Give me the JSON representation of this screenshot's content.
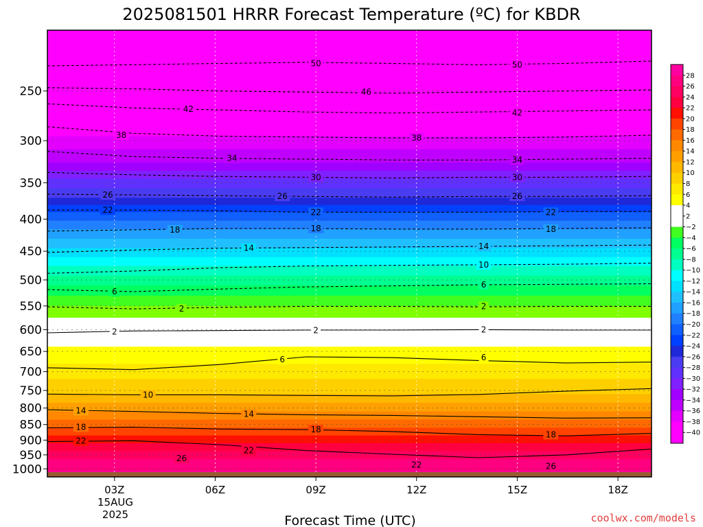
{
  "chart_data": {
    "type": "heatmap",
    "title": "2025081501 HRRR Forecast Temperature (ºC) for KBDR",
    "xlabel": "Forecast Time (UTC)",
    "ylabel": "",
    "x_ticks": [
      "03Z",
      "06Z",
      "09Z",
      "12Z",
      "15Z",
      "18Z"
    ],
    "x_date_lines": [
      "15AUG",
      "2025"
    ],
    "x_range_hours": [
      0,
      18
    ],
    "x_tick_hours": [
      2,
      5,
      8,
      11,
      14,
      17
    ],
    "y_scale": "log",
    "y_ticks": [
      250,
      300,
      350,
      400,
      450,
      500,
      550,
      600,
      650,
      700,
      750,
      800,
      850,
      900,
      950,
      1000
    ],
    "y_range_hpa": [
      200,
      1030
    ],
    "ground_level_hpa": 1012,
    "grid": true,
    "colorbar": {
      "placement": "right",
      "labels": [
        28,
        26,
        24,
        22,
        20,
        18,
        16,
        14,
        12,
        10,
        8,
        6,
        4,
        2,
        -2,
        -4,
        -6,
        -8,
        -10,
        -12,
        -14,
        -16,
        -18,
        -20,
        -22,
        -24,
        -26,
        -28,
        -30,
        -32,
        -34,
        -36,
        -38,
        -40
      ]
    },
    "profile": [
      {
        "p": 200,
        "t": -56
      },
      {
        "p": 230,
        "t": -50
      },
      {
        "p": 250,
        "t": -46
      },
      {
        "p": 270,
        "t": -42
      },
      {
        "p": 295,
        "t": -38
      },
      {
        "p": 325,
        "t": -34
      },
      {
        "p": 345,
        "t": -30
      },
      {
        "p": 370,
        "t": -26
      },
      {
        "p": 390,
        "t": -22
      },
      {
        "p": 415,
        "t": -18
      },
      {
        "p": 445,
        "t": -14
      },
      {
        "p": 475,
        "t": -10
      },
      {
        "p": 510,
        "t": -6
      },
      {
        "p": 550,
        "t": -2
      },
      {
        "p": 600,
        "t": 2
      },
      {
        "p": 680,
        "t": 6
      },
      {
        "p": 760,
        "t": 10
      },
      {
        "p": 810,
        "t": 14
      },
      {
        "p": 860,
        "t": 18
      },
      {
        "p": 910,
        "t": 22
      },
      {
        "p": 965,
        "t": 26
      },
      {
        "p": 1030,
        "t": 29
      }
    ],
    "contours": [
      {
        "value": -50,
        "p": [
          228,
          227,
          226,
          225,
          226,
          227,
          226,
          224
        ]
      },
      {
        "value": -46,
        "p": [
          247,
          248,
          250,
          251,
          252,
          251,
          250,
          249
        ]
      },
      {
        "value": -42,
        "p": [
          262,
          266,
          268,
          270,
          271,
          270,
          269,
          268
        ]
      },
      {
        "value": -38,
        "p": [
          285,
          292,
          295,
          296,
          297,
          297,
          296,
          294
        ]
      },
      {
        "value": -34,
        "p": [
          312,
          318,
          320,
          321,
          322,
          322,
          321,
          320
        ]
      },
      {
        "value": -30,
        "p": [
          337,
          340,
          342,
          343,
          344,
          343,
          343,
          342
        ]
      },
      {
        "value": -26,
        "p": [
          365,
          366,
          367,
          368,
          369,
          368,
          368,
          367
        ]
      },
      {
        "value": -22,
        "p": [
          387,
          387,
          388,
          390,
          390,
          390,
          389,
          389
        ]
      },
      {
        "value": -18,
        "p": [
          418,
          416,
          414,
          414,
          415,
          415,
          414,
          413
        ]
      },
      {
        "value": -14,
        "p": [
          452,
          448,
          445,
          444,
          443,
          442,
          441,
          440
        ]
      },
      {
        "value": -10,
        "p": [
          488,
          484,
          478,
          475,
          474,
          473,
          472,
          470
        ]
      },
      {
        "value": -6,
        "p": [
          518,
          522,
          517,
          513,
          511,
          509,
          508,
          507
        ]
      },
      {
        "value": -2,
        "p": [
          552,
          556,
          553,
          551,
          551,
          552,
          551,
          551
        ]
      },
      {
        "value": 2,
        "p": [
          607,
          603,
          602,
          601,
          601,
          600,
          601,
          601
        ]
      },
      {
        "value": 6,
        "p": [
          690,
          695,
          682,
          663,
          665,
          672,
          678,
          676
        ]
      },
      {
        "value": 10,
        "p": [
          760,
          762,
          762,
          764,
          765,
          761,
          752,
          745
        ]
      },
      {
        "value": 14,
        "p": [
          805,
          810,
          816,
          820,
          822,
          826,
          830,
          829
        ]
      },
      {
        "value": 18,
        "p": [
          860,
          858,
          864,
          866,
          872,
          882,
          886,
          878
        ]
      },
      {
        "value": 22,
        "p": [
          905,
          902,
          915,
          935,
          948,
          960,
          950,
          930
        ]
      }
    ],
    "contour_labels": [
      {
        "text": "50",
        "h": 8.0,
        "p": 226
      },
      {
        "text": "50",
        "h": 14.0,
        "p": 227
      },
      {
        "text": "46",
        "h": 9.5,
        "p": 251
      },
      {
        "text": "42",
        "h": 4.2,
        "p": 267
      },
      {
        "text": "42",
        "h": 14.0,
        "p": 271
      },
      {
        "text": "38",
        "h": 2.2,
        "p": 294
      },
      {
        "text": "38",
        "h": 11.0,
        "p": 297
      },
      {
        "text": "34",
        "h": 5.5,
        "p": 320
      },
      {
        "text": "34",
        "h": 14.0,
        "p": 322
      },
      {
        "text": "30",
        "h": 8.0,
        "p": 343
      },
      {
        "text": "30",
        "h": 14.0,
        "p": 343
      },
      {
        "text": "26",
        "h": 1.8,
        "p": 366
      },
      {
        "text": "26",
        "h": 7.0,
        "p": 368
      },
      {
        "text": "26",
        "h": 14.0,
        "p": 368
      },
      {
        "text": "22",
        "h": 1.8,
        "p": 387
      },
      {
        "text": "22",
        "h": 8.0,
        "p": 390
      },
      {
        "text": "22",
        "h": 15.0,
        "p": 390
      },
      {
        "text": "18",
        "h": 3.8,
        "p": 416
      },
      {
        "text": "18",
        "h": 8.0,
        "p": 414
      },
      {
        "text": "18",
        "h": 15.0,
        "p": 415
      },
      {
        "text": "14",
        "h": 6.0,
        "p": 445
      },
      {
        "text": "14",
        "h": 13.0,
        "p": 442
      },
      {
        "text": "10",
        "h": 13.0,
        "p": 473
      },
      {
        "text": "6",
        "h": 2.0,
        "p": 522
      },
      {
        "text": "6",
        "h": 13.0,
        "p": 509
      },
      {
        "text": "2",
        "h": 4.0,
        "p": 556
      },
      {
        "text": "2",
        "h": 13.0,
        "p": 551
      },
      {
        "text": "2",
        "h": 2.0,
        "p": 605
      },
      {
        "text": "2",
        "h": 8.0,
        "p": 602
      },
      {
        "text": "2",
        "h": 13.0,
        "p": 600
      },
      {
        "text": "6",
        "h": 7.0,
        "p": 670
      },
      {
        "text": "6",
        "h": 13.0,
        "p": 665
      },
      {
        "text": "10",
        "h": 3.0,
        "p": 762
      },
      {
        "text": "14",
        "h": 1.0,
        "p": 808
      },
      {
        "text": "14",
        "h": 6.0,
        "p": 818
      },
      {
        "text": "18",
        "h": 1.0,
        "p": 858
      },
      {
        "text": "18",
        "h": 8.0,
        "p": 866
      },
      {
        "text": "18",
        "h": 15.0,
        "p": 882
      },
      {
        "text": "22",
        "h": 1.0,
        "p": 903
      },
      {
        "text": "22",
        "h": 6.0,
        "p": 935
      },
      {
        "text": "22",
        "h": 11.0,
        "p": 985
      },
      {
        "text": "26",
        "h": 4.0,
        "p": 962
      },
      {
        "text": "26",
        "h": 15.0,
        "p": 990
      }
    ]
  },
  "credit": "coolwx.com/models"
}
